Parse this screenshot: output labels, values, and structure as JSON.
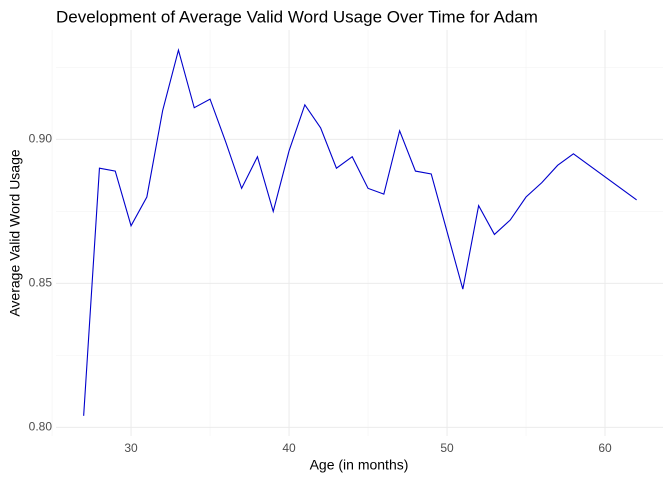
{
  "chart_data": {
    "type": "line",
    "title": "Development of Average Valid Word Usage Over Time for Adam",
    "x_label": "Age (in months)",
    "y_label": "Average Valid Word Usage",
    "series": [
      {
        "name": "Adam",
        "color": "#0000cc",
        "x": [
          27,
          28,
          29,
          30,
          31,
          32,
          33,
          34,
          35,
          36,
          37,
          38,
          39,
          40,
          41,
          42,
          43,
          44,
          45,
          46,
          47,
          48,
          49,
          50,
          51,
          52,
          53,
          54,
          55,
          56,
          57,
          58,
          62
        ],
        "values": [
          0.804,
          0.89,
          0.889,
          0.87,
          0.88,
          0.91,
          0.931,
          0.911,
          0.914,
          0.899,
          0.883,
          0.894,
          0.875,
          0.896,
          0.912,
          0.904,
          0.89,
          0.894,
          0.883,
          0.881,
          0.903,
          0.889,
          0.888,
          0.868,
          0.848,
          0.877,
          0.867,
          0.872,
          0.88,
          0.885,
          0.891,
          0.895,
          0.879
        ]
      }
    ],
    "xlim": [
      25.25,
      63.67
    ],
    "ylim": [
      0.797,
      0.938
    ],
    "xticks": [
      30,
      40,
      50,
      60
    ],
    "yticks": [
      {
        "value": 0.8,
        "label": "0.80"
      },
      {
        "value": 0.85,
        "label": "0.85"
      },
      {
        "value": 0.9,
        "label": "0.90"
      }
    ],
    "x_minor_ticks": [
      25,
      35,
      45,
      55
    ],
    "y_minor_ticks": [
      0.825,
      0.875,
      0.925
    ],
    "grid": true
  }
}
